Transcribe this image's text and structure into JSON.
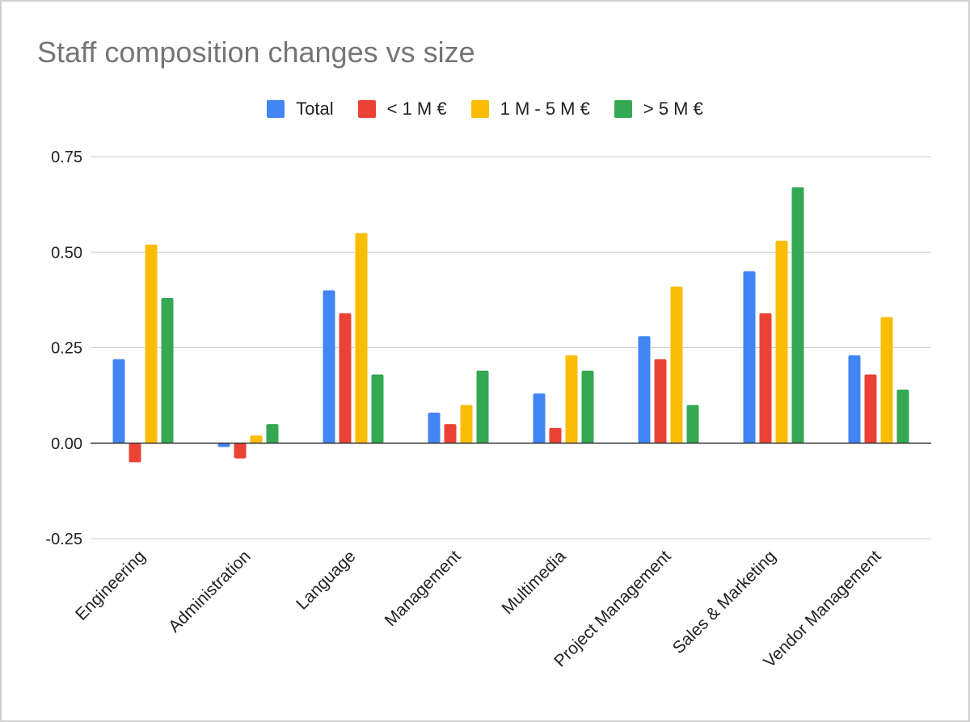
{
  "chart_data": {
    "type": "bar",
    "title": "Staff composition changes vs size",
    "xlabel": "",
    "ylabel": "",
    "ylim": [
      -0.25,
      0.75
    ],
    "yticks": [
      "0.75",
      "0.50",
      "0.25",
      "0.00",
      "-0.25"
    ],
    "grid": true,
    "legend_position": "top",
    "categories": [
      "Engineering",
      "Administration",
      "Language",
      "Management",
      "Multimedia",
      "Project Management",
      "Sales & Marketing",
      "Vendor Management"
    ],
    "series": [
      {
        "name": "Total",
        "color": "#4285f4",
        "values": [
          0.22,
          -0.01,
          0.4,
          0.08,
          0.13,
          0.28,
          0.45,
          0.23
        ]
      },
      {
        "name": "< 1 M €",
        "color": "#ea4335",
        "values": [
          -0.05,
          -0.04,
          0.34,
          0.05,
          0.04,
          0.22,
          0.34,
          0.18
        ]
      },
      {
        "name": "1 M - 5 M €",
        "color": "#fbbc04",
        "values": [
          0.52,
          0.02,
          0.55,
          0.1,
          0.23,
          0.41,
          0.53,
          0.33
        ]
      },
      {
        "name": "> 5 M €",
        "color": "#34a853",
        "values": [
          0.38,
          0.05,
          0.18,
          0.19,
          0.19,
          0.1,
          0.67,
          0.14
        ]
      }
    ]
  }
}
